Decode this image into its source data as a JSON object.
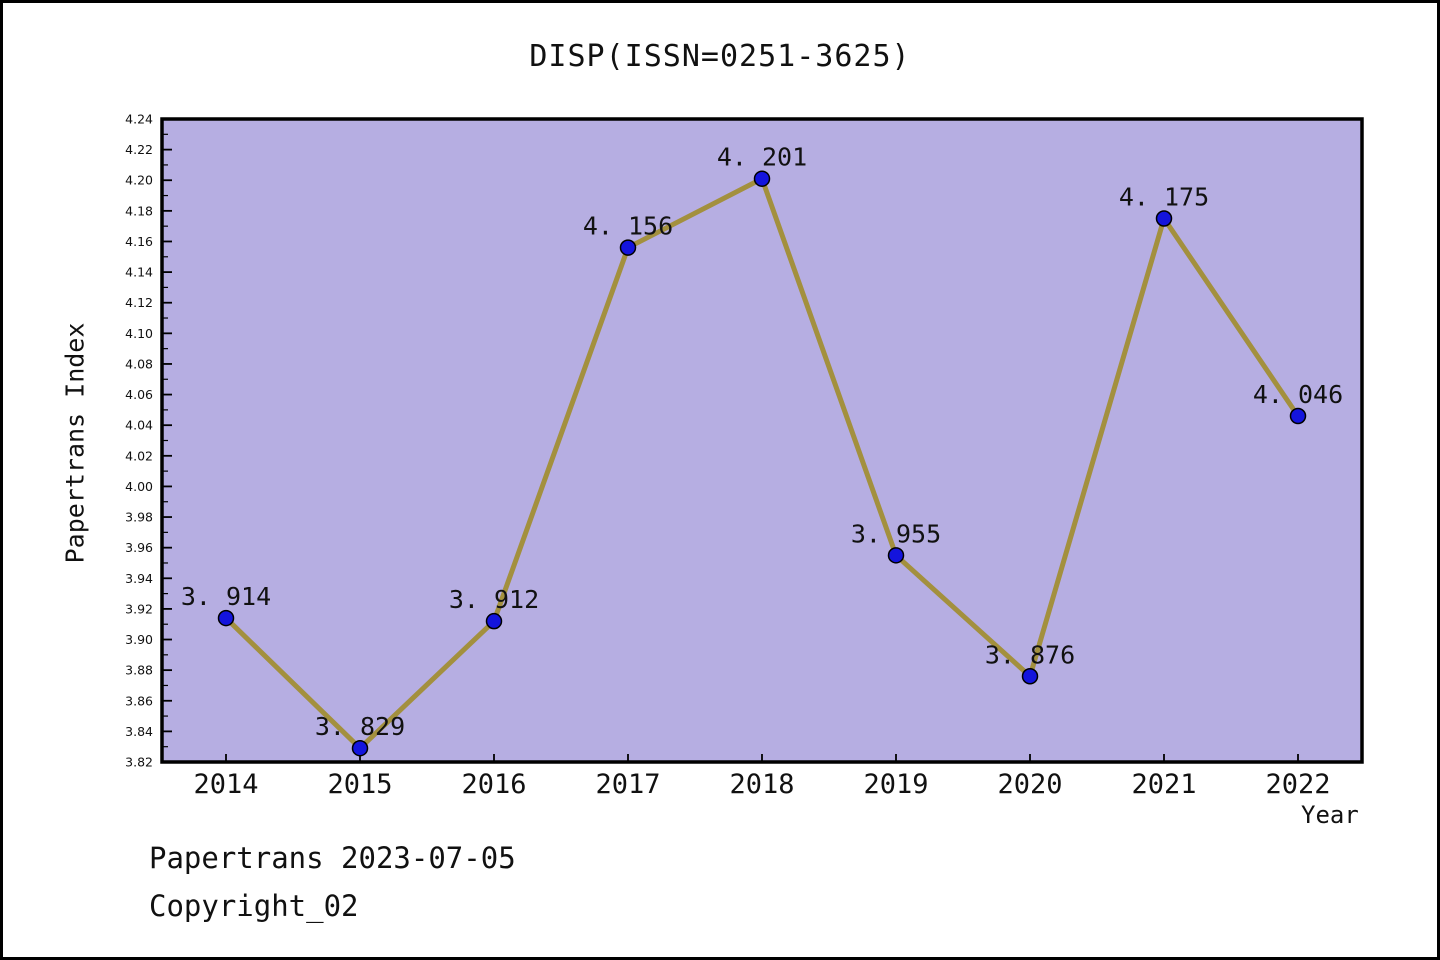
{
  "title": "DISP(ISSN=0251-3625)",
  "footer": {
    "line1": "Papertrans 2023-07-05",
    "line2": "Copyright_02"
  },
  "chart_data": {
    "type": "line",
    "title": "DISP(ISSN=0251-3625)",
    "x": [
      2014,
      2015,
      2016,
      2017,
      2018,
      2019,
      2020,
      2021,
      2022
    ],
    "series": [
      {
        "name": "Papertrans Index",
        "values": [
          3.914,
          3.829,
          3.912,
          4.156,
          4.201,
          3.955,
          3.876,
          4.175,
          4.046
        ]
      }
    ],
    "xlabel": "Year",
    "ylabel": "Papertrans Index",
    "ylim": [
      3.82,
      4.24
    ],
    "y_tick_step": 0.02,
    "y_minor_tick_step": 0.01,
    "grid": false,
    "legend": "none",
    "point_labels": true,
    "colors": {
      "line": "#a3903e",
      "marker": "#1414dd",
      "marker_edge": "#000000",
      "plot_bg": "#b6aee2",
      "frame": "#000000",
      "text": "#111111"
    }
  }
}
